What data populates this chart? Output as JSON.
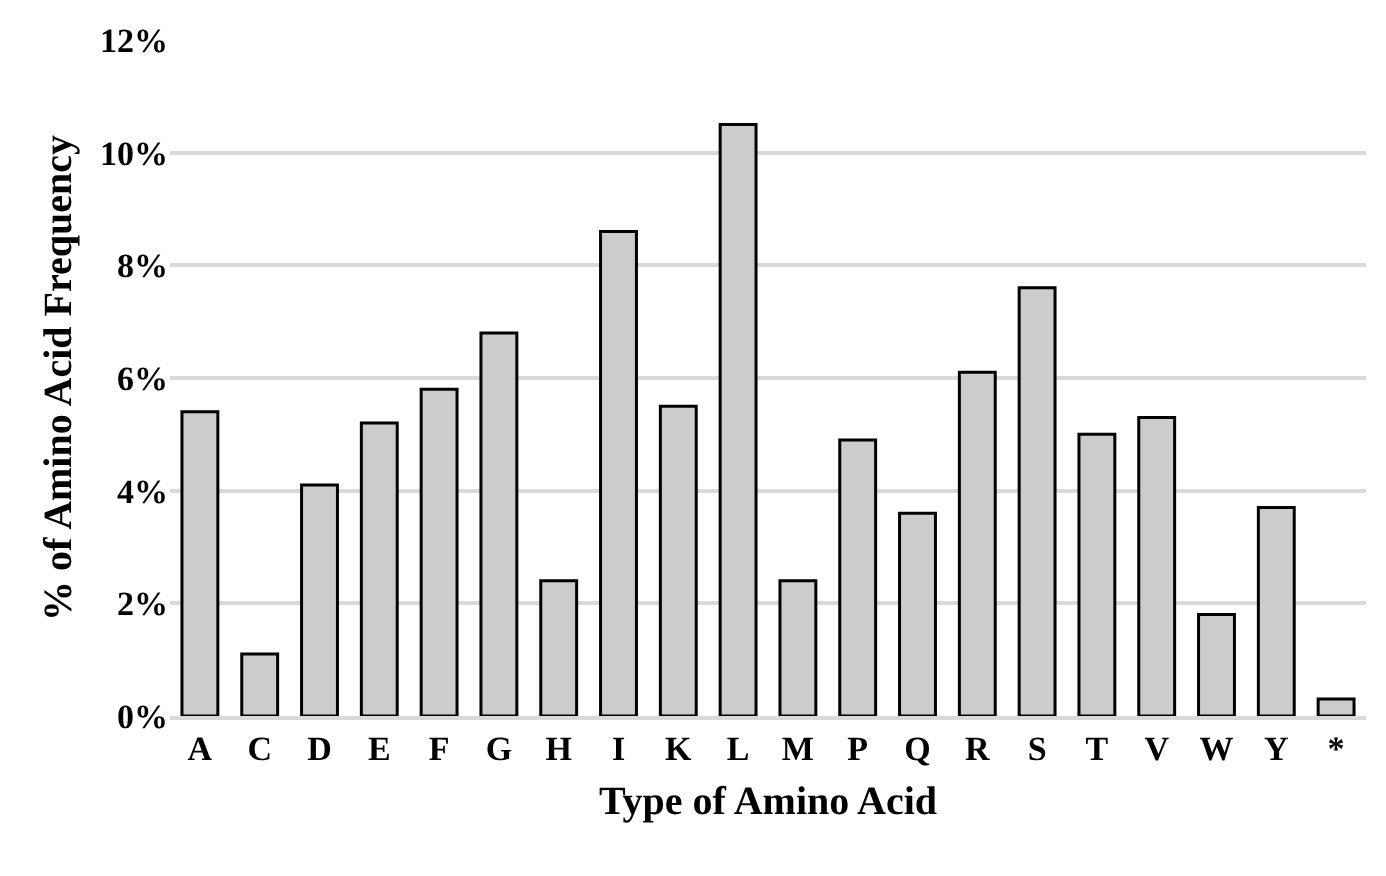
{
  "chart_data": {
    "type": "bar",
    "xlabel": "Type of Amino Acid",
    "ylabel": "% of Amino Acid Frequency",
    "categories": [
      "A",
      "C",
      "D",
      "E",
      "F",
      "G",
      "H",
      "I",
      "K",
      "L",
      "M",
      "P",
      "Q",
      "R",
      "S",
      "T",
      "V",
      "W",
      "Y",
      "*"
    ],
    "values": [
      5.4,
      1.1,
      4.1,
      5.2,
      5.8,
      6.8,
      2.4,
      8.6,
      5.5,
      10.5,
      2.4,
      4.9,
      3.6,
      6.1,
      7.6,
      5.0,
      5.3,
      1.8,
      3.7,
      0.3
    ],
    "color": "#cccccc",
    "ylim": [
      0,
      12
    ],
    "yticks": [
      {
        "value": 0,
        "label": "0%"
      },
      {
        "value": 2,
        "label": "2%"
      },
      {
        "value": 4,
        "label": "4%"
      },
      {
        "value": 6,
        "label": "6%"
      },
      {
        "value": 8,
        "label": "8%"
      },
      {
        "value": 10,
        "label": "10%"
      },
      {
        "value": 12,
        "label": "12%"
      }
    ],
    "grid": "y"
  }
}
